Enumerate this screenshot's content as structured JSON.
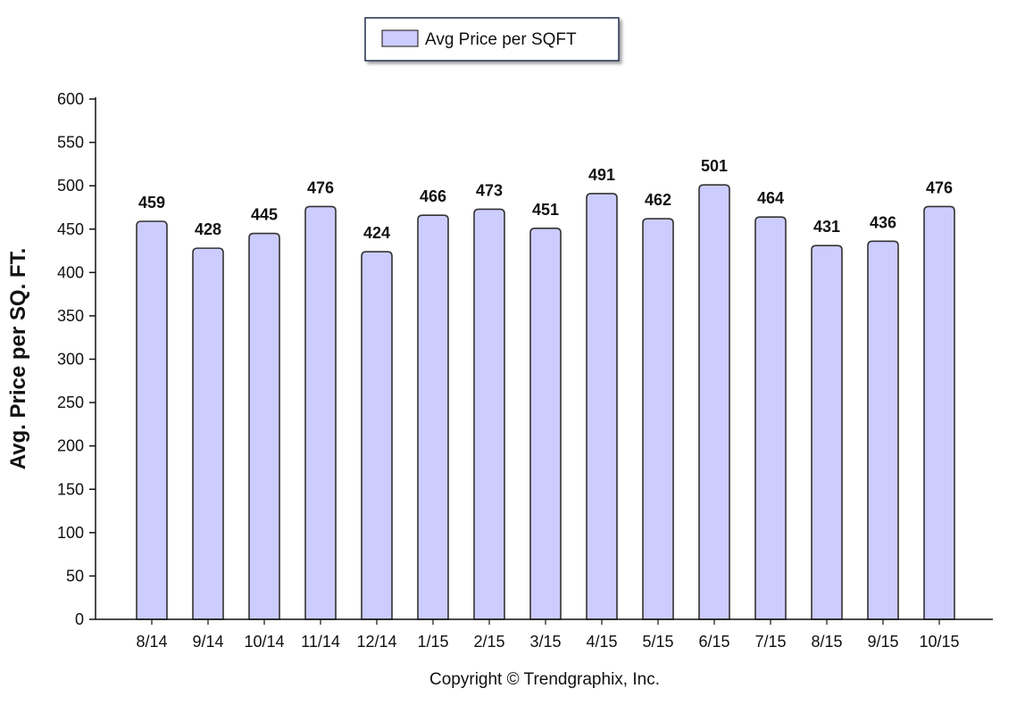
{
  "chart_data": {
    "type": "bar",
    "categories": [
      "8/14",
      "9/14",
      "10/14",
      "11/14",
      "12/14",
      "1/15",
      "2/15",
      "3/15",
      "4/15",
      "5/15",
      "6/15",
      "7/15",
      "8/15",
      "9/15",
      "10/15"
    ],
    "series": [
      {
        "name": "Avg Price per SQFT",
        "values": [
          459,
          428,
          445,
          476,
          424,
          466,
          473,
          451,
          491,
          462,
          501,
          464,
          431,
          436,
          476
        ],
        "color": "#ccccff",
        "edge_color": "#333333"
      }
    ],
    "xlabel": "",
    "ylabel": "Avg. Price per SQ. FT.",
    "ylim": [
      0,
      600
    ],
    "yticks": [
      0,
      50,
      100,
      150,
      200,
      250,
      300,
      350,
      400,
      450,
      500,
      550,
      600
    ],
    "grid": false,
    "legend_position": "top-center",
    "data_labels": true
  },
  "footer": {
    "copyright": "Copyright © Trendgraphix, Inc."
  }
}
